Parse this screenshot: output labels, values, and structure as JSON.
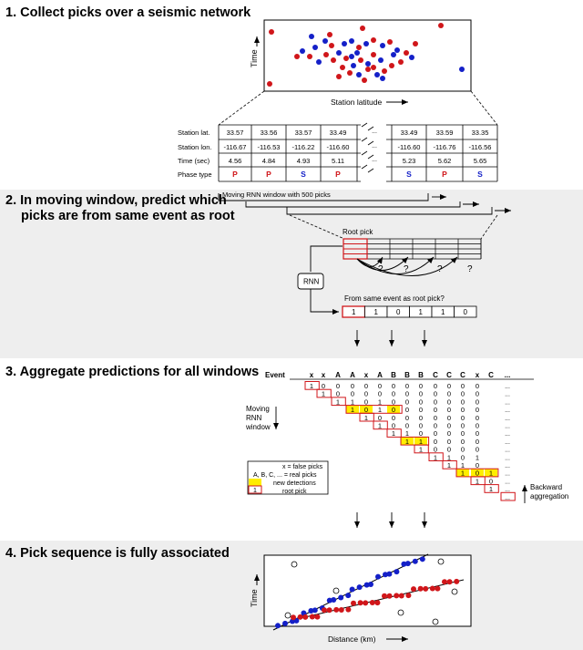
{
  "sections": {
    "s1": "1. Collect picks over a seismic network",
    "s2a": "2. In moving window, predict which",
    "s2b": "picks are from same event as root",
    "s3": "3. Aggregate predictions for all windows",
    "s4": "4. Pick sequence is fully associated"
  },
  "plot1": {
    "xlabel": "Station latitude",
    "ylabel": "Time"
  },
  "picks_table": {
    "row_labels": [
      "Station lat.",
      "Station lon.",
      "Time (sec)",
      "Phase type"
    ],
    "ellipsis": "...",
    "columns": [
      {
        "lat": "33.57",
        "lon": "-116.67",
        "time": "4.56",
        "phase": "P"
      },
      {
        "lat": "33.56",
        "lon": "-116.53",
        "time": "4.84",
        "phase": "P"
      },
      {
        "lat": "33.57",
        "lon": "-116.22",
        "time": "4.93",
        "phase": "S"
      },
      {
        "lat": "33.49",
        "lon": "-116.60",
        "time": "5.11",
        "phase": "P"
      },
      {
        "lat": "33.49",
        "lon": "-116.60",
        "time": "5.23",
        "phase": "S"
      },
      {
        "lat": "33.59",
        "lon": "-116.76",
        "time": "5.62",
        "phase": "P"
      },
      {
        "lat": "33.35",
        "lon": "-116.56",
        "time": "5.65",
        "phase": "S"
      }
    ]
  },
  "window": {
    "label": "Moving RNN window with 500 picks",
    "root_pick": "Root pick",
    "rnn": "RNN",
    "question": "?",
    "from_same": "From same event as root pick?",
    "outputs": [
      "1",
      "1",
      "0",
      "1",
      "1",
      "0"
    ]
  },
  "aggregation": {
    "event_label": "Event",
    "header": [
      "x",
      "x",
      "A",
      "A",
      "x",
      "A",
      "B",
      "B",
      "B",
      "C",
      "C",
      "C",
      "x",
      "C",
      "..."
    ],
    "moving": [
      "Moving",
      "RNN",
      "window"
    ],
    "backward": [
      "Backward",
      "aggregation"
    ],
    "ellipsis": "...",
    "legend": {
      "false_picks": "x = false picks",
      "real_picks": "A, B, C, ... = real picks",
      "new_detections": "new detections",
      "root_one": "1",
      "root_pick": "root pick"
    }
  },
  "plot4": {
    "xlabel": "Distance (km)",
    "ylabel": "Time"
  },
  "colors": {
    "p_phase": "#d0161a",
    "s_phase": "#1420c8",
    "highlight": "#ffee00",
    "band": "#eeeeee"
  }
}
